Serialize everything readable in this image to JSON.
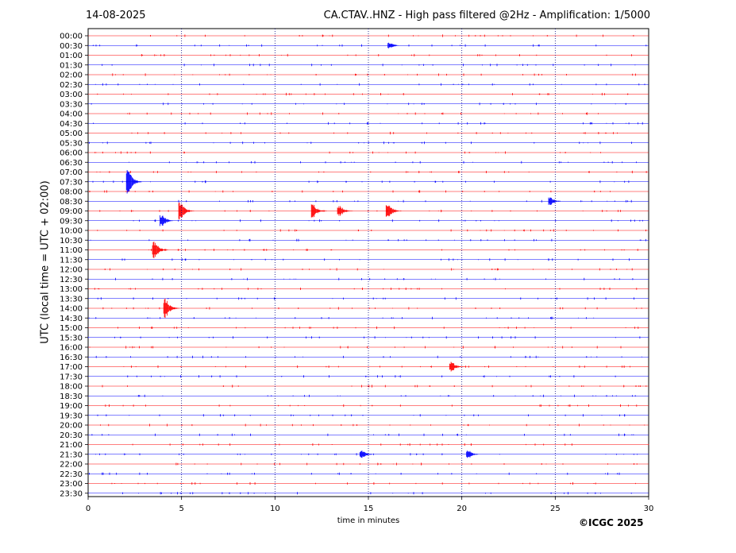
{
  "header": {
    "date": "14-08-2025",
    "title": "CA.CTAV..HNZ - High pass filtered @2Hz - Amplification: 1/5000"
  },
  "footer": {
    "copyright": "©ICGC 2025"
  },
  "colors": {
    "trace_a": "#ff0000",
    "trace_b": "#0000ff",
    "grid": "#000080"
  },
  "chart_data": {
    "type": "line",
    "ylabel": "UTC (local time = UTC + 02:00)",
    "xlabel": "time in minutes",
    "xlim": [
      0,
      30
    ],
    "x_ticks": [
      0,
      5,
      10,
      15,
      20,
      25,
      30
    ],
    "vertical_grid": [
      5,
      10,
      15,
      20,
      25
    ],
    "rows": [
      "00:00",
      "00:30",
      "01:00",
      "01:30",
      "02:00",
      "02:30",
      "03:00",
      "03:30",
      "04:00",
      "04:30",
      "05:00",
      "05:30",
      "06:00",
      "06:30",
      "07:00",
      "07:30",
      "08:00",
      "08:30",
      "09:00",
      "09:30",
      "10:00",
      "10:30",
      "11:00",
      "11:30",
      "12:00",
      "12:30",
      "13:00",
      "13:30",
      "14:00",
      "14:30",
      "15:00",
      "15:30",
      "16:00",
      "16:30",
      "17:00",
      "17:30",
      "18:00",
      "18:30",
      "19:00",
      "19:30",
      "20:00",
      "20:30",
      "21:00",
      "21:30",
      "22:00",
      "22:30",
      "23:00",
      "23:30"
    ],
    "events": [
      {
        "row": "07:30",
        "minute": 2.2,
        "amplitude": 1.3
      },
      {
        "row": "09:00",
        "minute": 5.0,
        "amplitude": 0.9
      },
      {
        "row": "09:00",
        "minute": 12.1,
        "amplitude": 0.7
      },
      {
        "row": "09:00",
        "minute": 13.5,
        "amplitude": 0.6
      },
      {
        "row": "09:00",
        "minute": 16.1,
        "amplitude": 0.8
      },
      {
        "row": "09:30",
        "minute": 4.0,
        "amplitude": 0.6
      },
      {
        "row": "11:00",
        "minute": 3.6,
        "amplitude": 0.9
      },
      {
        "row": "14:00",
        "minute": 4.2,
        "amplitude": 1.0
      },
      {
        "row": "17:00",
        "minute": 19.5,
        "amplitude": 0.5
      },
      {
        "row": "21:30",
        "minute": 14.7,
        "amplitude": 0.4
      },
      {
        "row": "21:30",
        "minute": 20.4,
        "amplitude": 0.4
      },
      {
        "row": "08:30",
        "minute": 24.8,
        "amplitude": 0.4
      },
      {
        "row": "00:30",
        "minute": 16.2,
        "amplitude": 0.3
      }
    ]
  }
}
